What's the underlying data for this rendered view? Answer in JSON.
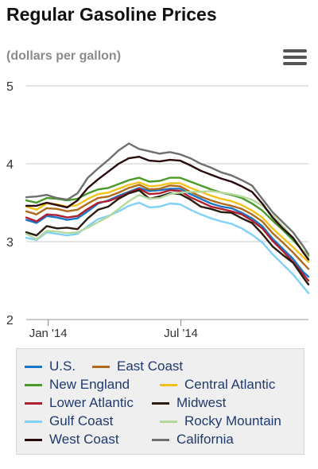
{
  "header": {
    "title": "Regular Gasoline Prices",
    "subtitle": "(dollars per gallon)",
    "menu_icon": "hamburger-menu-icon"
  },
  "chart_data": {
    "type": "line",
    "title": "Regular Gasoline Prices",
    "ylabel": "(dollars per gallon)",
    "xlabel": "",
    "ylim": [
      2,
      5
    ],
    "yticks": [
      2,
      3,
      4,
      5
    ],
    "xlim": [
      "2013-12-02",
      "2014-12-22"
    ],
    "xticks": [
      {
        "date": "2014-01-01",
        "label": "Jan '14"
      },
      {
        "date": "2014-07-01",
        "label": "Jul '14"
      }
    ],
    "grid": true,
    "legend_position": "bottom",
    "x": [
      "2013-12-02",
      "2013-12-16",
      "2013-12-30",
      "2014-01-13",
      "2014-01-27",
      "2014-02-10",
      "2014-02-24",
      "2014-03-10",
      "2014-03-24",
      "2014-04-07",
      "2014-04-21",
      "2014-05-05",
      "2014-05-19",
      "2014-06-02",
      "2014-06-16",
      "2014-06-30",
      "2014-07-14",
      "2014-07-28",
      "2014-08-11",
      "2014-08-25",
      "2014-09-08",
      "2014-09-22",
      "2014-10-06",
      "2014-10-20",
      "2014-11-03",
      "2014-11-17",
      "2014-12-01",
      "2014-12-15",
      "2014-12-22"
    ],
    "series": [
      {
        "name": "U.S.",
        "color": "#1a75c9",
        "values": [
          3.28,
          3.24,
          3.33,
          3.31,
          3.28,
          3.3,
          3.39,
          3.49,
          3.53,
          3.59,
          3.64,
          3.69,
          3.65,
          3.66,
          3.68,
          3.68,
          3.61,
          3.55,
          3.49,
          3.45,
          3.43,
          3.37,
          3.3,
          3.2,
          3.04,
          2.91,
          2.78,
          2.61,
          2.55
        ]
      },
      {
        "name": "East Coast",
        "color": "#b06a1c",
        "values": [
          3.39,
          3.35,
          3.43,
          3.42,
          3.39,
          3.41,
          3.49,
          3.56,
          3.58,
          3.63,
          3.69,
          3.73,
          3.67,
          3.68,
          3.72,
          3.71,
          3.64,
          3.58,
          3.53,
          3.49,
          3.46,
          3.42,
          3.35,
          3.26,
          3.11,
          2.99,
          2.86,
          2.72,
          2.65
        ]
      },
      {
        "name": "New England",
        "color": "#4a9a2a",
        "values": [
          3.53,
          3.5,
          3.56,
          3.55,
          3.53,
          3.55,
          3.62,
          3.67,
          3.69,
          3.74,
          3.79,
          3.82,
          3.77,
          3.78,
          3.82,
          3.82,
          3.77,
          3.72,
          3.67,
          3.63,
          3.6,
          3.56,
          3.49,
          3.4,
          3.27,
          3.15,
          3.02,
          2.88,
          2.82
        ]
      },
      {
        "name": "Central Atlantic",
        "color": "#f2c21b",
        "values": [
          3.45,
          3.41,
          3.49,
          3.48,
          3.45,
          3.47,
          3.55,
          3.61,
          3.63,
          3.68,
          3.73,
          3.76,
          3.71,
          3.72,
          3.75,
          3.75,
          3.69,
          3.64,
          3.59,
          3.55,
          3.52,
          3.47,
          3.4,
          3.31,
          3.17,
          3.05,
          2.93,
          2.8,
          2.74
        ]
      },
      {
        "name": "Lower Atlantic",
        "color": "#b0202e",
        "values": [
          3.31,
          3.26,
          3.35,
          3.34,
          3.31,
          3.33,
          3.42,
          3.5,
          3.52,
          3.57,
          3.63,
          3.68,
          3.61,
          3.62,
          3.66,
          3.65,
          3.57,
          3.51,
          3.45,
          3.42,
          3.39,
          3.35,
          3.27,
          3.17,
          3.01,
          2.88,
          2.74,
          2.58,
          2.5
        ]
      },
      {
        "name": "Midwest",
        "color": "#2a1c10",
        "values": [
          3.12,
          3.08,
          3.2,
          3.17,
          3.18,
          3.16,
          3.3,
          3.41,
          3.45,
          3.55,
          3.62,
          3.66,
          3.55,
          3.58,
          3.62,
          3.61,
          3.54,
          3.45,
          3.42,
          3.38,
          3.37,
          3.3,
          3.24,
          3.1,
          2.94,
          2.83,
          2.73,
          2.54,
          2.45
        ]
      },
      {
        "name": "Gulf Coast",
        "color": "#7fd1f7",
        "values": [
          3.05,
          3.02,
          3.12,
          3.1,
          3.08,
          3.1,
          3.2,
          3.29,
          3.33,
          3.39,
          3.46,
          3.5,
          3.44,
          3.45,
          3.49,
          3.48,
          3.41,
          3.35,
          3.3,
          3.26,
          3.23,
          3.17,
          3.09,
          2.99,
          2.84,
          2.71,
          2.58,
          2.42,
          2.34
        ]
      },
      {
        "name": "Rocky Mountain",
        "color": "#b5d99c",
        "values": [
          3.1,
          3.03,
          3.14,
          3.13,
          3.11,
          3.12,
          3.18,
          3.25,
          3.32,
          3.42,
          3.52,
          3.6,
          3.55,
          3.56,
          3.61,
          3.63,
          3.64,
          3.64,
          3.65,
          3.63,
          3.61,
          3.58,
          3.54,
          3.46,
          3.34,
          3.2,
          3.05,
          2.88,
          2.8
        ]
      },
      {
        "name": "West Coast",
        "color": "#2a0a0c",
        "values": [
          3.46,
          3.46,
          3.5,
          3.47,
          3.44,
          3.53,
          3.69,
          3.8,
          3.9,
          4.0,
          4.07,
          4.09,
          4.04,
          4.03,
          4.05,
          4.04,
          3.98,
          3.91,
          3.86,
          3.81,
          3.77,
          3.71,
          3.64,
          3.49,
          3.31,
          3.17,
          3.05,
          2.86,
          2.77
        ]
      },
      {
        "name": "California",
        "color": "#6f6f6f",
        "values": [
          3.57,
          3.58,
          3.6,
          3.56,
          3.54,
          3.62,
          3.82,
          3.94,
          4.05,
          4.17,
          4.26,
          4.19,
          4.16,
          4.13,
          4.15,
          4.12,
          4.07,
          4.0,
          3.95,
          3.89,
          3.85,
          3.79,
          3.72,
          3.55,
          3.38,
          3.25,
          3.12,
          2.94,
          2.84
        ]
      }
    ]
  }
}
